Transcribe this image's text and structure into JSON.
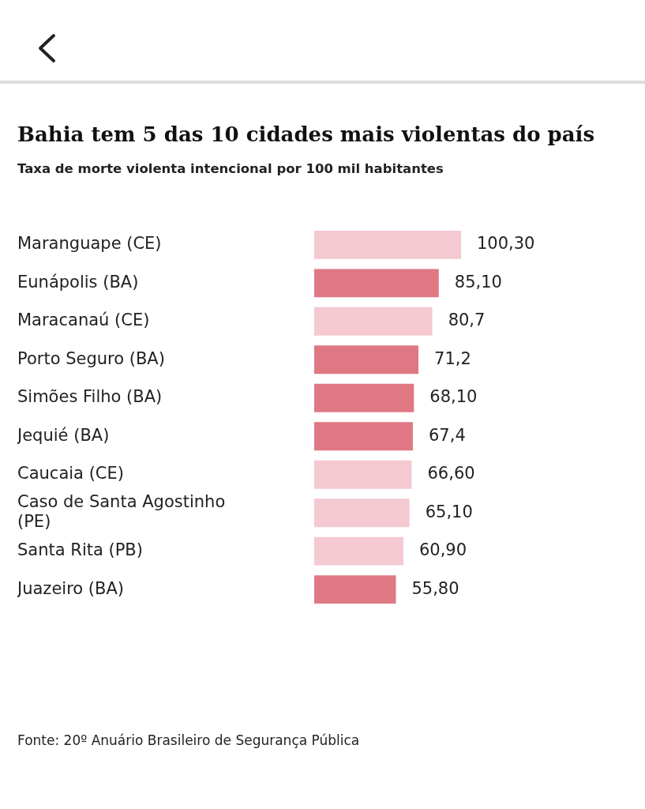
{
  "chart_data": {
    "type": "bar",
    "orientation": "horizontal",
    "title": "Bahia tem 5 das 10 cidades mais violentas do país",
    "subtitle": "Taxa de morte violenta intencional por 100 mil habitantes",
    "categories": [
      "Maranguape (CE)",
      "Eunápolis (BA)",
      "Maracanaú (CE)",
      "Porto Seguro (BA)",
      "Simões Filho (BA)",
      "Jequié (BA)",
      "Caucaia (CE)",
      "Caso de Santa Agostinho (PE)",
      "Santa Rita (PB)",
      "Juazeiro (BA)"
    ],
    "values": [
      100.3,
      85.1,
      80.7,
      71.2,
      68.1,
      67.4,
      66.6,
      65.1,
      60.9,
      55.8
    ],
    "value_labels": [
      "100,30",
      "85,10",
      "80,7",
      "71,2",
      "68,10",
      "67,4",
      "66,60",
      "65,10",
      "60,90",
      "55,80"
    ],
    "colors": [
      "#f4c9d1",
      "#e07884",
      "#f4c9d1",
      "#e07884",
      "#e07884",
      "#e07884",
      "#f4c9d1",
      "#f4c9d1",
      "#f4c9d1",
      "#e07884"
    ],
    "legend": false,
    "annotations": [
      "Fonte: 20º Anuário Brasileiro de Segurança Pública"
    ]
  }
}
